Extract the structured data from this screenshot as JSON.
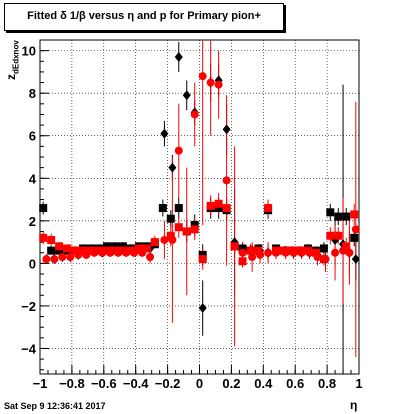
{
  "title": "Fitted δ 1/β versus η and p for Primary pion+",
  "timestamp": "Sat Sep  9 12:36:41 2017",
  "xlabel": "η",
  "ylabel_main": "z",
  "ylabel_sub": "dEdxnov",
  "chart_data": {
    "type": "scatter",
    "title": "Fitted δ 1/β versus η and p for Primary pion+",
    "xlabel": "η",
    "ylabel": "z_dEdxnov",
    "xlim": [
      -1.0,
      1.0
    ],
    "ylim": [
      -5.2,
      10.5
    ],
    "grid": true,
    "xticks": [
      -1,
      -0.8,
      -0.6,
      -0.4,
      -0.2,
      0,
      0.2,
      0.4,
      0.6,
      0.8,
      1
    ],
    "xtick_labels": [
      "−1",
      "−0.8",
      "−0.6",
      "−0.4",
      "−0.2",
      "0",
      "0.2",
      "0.4",
      "0.6",
      "0.8",
      "1"
    ],
    "yticks": [
      -4,
      -2,
      0,
      2,
      4,
      6,
      8,
      10
    ],
    "ytick_labels": [
      "−4",
      "−2",
      "0",
      "2",
      "4",
      "6",
      "8",
      "10"
    ],
    "series": [
      {
        "color": "#000000",
        "marker": "square",
        "points": [
          {
            "x": -0.98,
            "y": 2.6,
            "err": 0.3
          },
          {
            "x": -0.93,
            "y": 0.6,
            "err": 0.2
          },
          {
            "x": -0.88,
            "y": 0.6,
            "err": 0.2
          },
          {
            "x": -0.83,
            "y": 0.6,
            "err": 0.2
          },
          {
            "x": -0.78,
            "y": 0.6,
            "err": 0.2
          },
          {
            "x": -0.73,
            "y": 0.7,
            "err": 0.2
          },
          {
            "x": -0.68,
            "y": 0.7,
            "err": 0.2
          },
          {
            "x": -0.63,
            "y": 0.7,
            "err": 0.2
          },
          {
            "x": -0.58,
            "y": 0.8,
            "err": 0.2
          },
          {
            "x": -0.53,
            "y": 0.8,
            "err": 0.2
          },
          {
            "x": -0.48,
            "y": 0.8,
            "err": 0.2
          },
          {
            "x": -0.43,
            "y": 0.7,
            "err": 0.2
          },
          {
            "x": -0.38,
            "y": 0.8,
            "err": 0.2
          },
          {
            "x": -0.33,
            "y": 0.8,
            "err": 0.2
          },
          {
            "x": -0.28,
            "y": 0.9,
            "err": 0.2
          },
          {
            "x": -0.23,
            "y": 2.6,
            "err": 0.4
          },
          {
            "x": -0.18,
            "y": 2.1,
            "err": 0.4
          },
          {
            "x": -0.13,
            "y": 2.6,
            "err": 0.5
          },
          {
            "x": -0.08,
            "y": 1.5,
            "err": 0.5
          },
          {
            "x": -0.03,
            "y": 1.8,
            "err": 0.5
          },
          {
            "x": 0.02,
            "y": 0.4,
            "err": 0.5
          },
          {
            "x": 0.07,
            "y": 2.6,
            "err": 0.5
          },
          {
            "x": 0.12,
            "y": 2.6,
            "err": 0.5
          },
          {
            "x": 0.17,
            "y": 2.5,
            "err": 0.5
          },
          {
            "x": 0.22,
            "y": 0.8,
            "err": 0.4
          },
          {
            "x": 0.27,
            "y": 0.7,
            "err": 0.3
          },
          {
            "x": 0.32,
            "y": 0.6,
            "err": 0.3
          },
          {
            "x": 0.37,
            "y": 0.7,
            "err": 0.2
          },
          {
            "x": 0.43,
            "y": 2.5,
            "err": 0.4
          },
          {
            "x": 0.48,
            "y": 0.7,
            "err": 0.2
          },
          {
            "x": 0.53,
            "y": 0.6,
            "err": 0.2
          },
          {
            "x": 0.58,
            "y": 0.6,
            "err": 0.2
          },
          {
            "x": 0.63,
            "y": 0.6,
            "err": 0.2
          },
          {
            "x": 0.68,
            "y": 0.7,
            "err": 0.2
          },
          {
            "x": 0.73,
            "y": 0.6,
            "err": 0.2
          },
          {
            "x": 0.78,
            "y": 0.7,
            "err": 0.3
          },
          {
            "x": 0.82,
            "y": 2.4,
            "err": 0.4
          },
          {
            "x": 0.87,
            "y": 2.2,
            "err": 0.4
          },
          {
            "x": 0.92,
            "y": 2.2,
            "err": 0.4
          },
          {
            "x": 0.97,
            "y": 1.2,
            "err": 0.4
          }
        ]
      },
      {
        "color": "#000000",
        "marker": "diamond",
        "points": [
          {
            "x": -0.96,
            "y": 0.2,
            "err": 0.2
          },
          {
            "x": -0.91,
            "y": 0.2,
            "err": 0.2
          },
          {
            "x": -0.86,
            "y": 0.3,
            "err": 0.2
          },
          {
            "x": -0.81,
            "y": 0.3,
            "err": 0.2
          },
          {
            "x": -0.76,
            "y": 0.4,
            "err": 0.2
          },
          {
            "x": -0.71,
            "y": 0.5,
            "err": 0.2
          },
          {
            "x": -0.66,
            "y": 0.6,
            "err": 0.2
          },
          {
            "x": -0.61,
            "y": 0.5,
            "err": 0.2
          },
          {
            "x": -0.56,
            "y": 0.6,
            "err": 0.2
          },
          {
            "x": -0.51,
            "y": 0.6,
            "err": 0.2
          },
          {
            "x": -0.46,
            "y": 0.6,
            "err": 0.2
          },
          {
            "x": -0.41,
            "y": 0.6,
            "err": 0.2
          },
          {
            "x": -0.36,
            "y": 0.6,
            "err": 0.2
          },
          {
            "x": -0.31,
            "y": 0.7,
            "err": 0.2
          },
          {
            "x": -0.22,
            "y": 6.1,
            "err": 0.6
          },
          {
            "x": -0.17,
            "y": 4.5,
            "err": 0.6
          },
          {
            "x": -0.13,
            "y": 9.7,
            "err": 0.7
          },
          {
            "x": -0.08,
            "y": 7.9,
            "err": 0.7
          },
          {
            "x": -0.03,
            "y": 7.1,
            "err": 0.6
          },
          {
            "x": 0.02,
            "y": -2.1,
            "err": 1.3
          },
          {
            "x": 0.07,
            "y": 8.5,
            "err": 0.9
          },
          {
            "x": 0.12,
            "y": 8.6,
            "err": 0.8
          },
          {
            "x": 0.17,
            "y": 6.3,
            "err": 1.2
          },
          {
            "x": 0.22,
            "y": 1.0,
            "err": 2.5
          },
          {
            "x": 0.27,
            "y": 0.6,
            "err": 0.4
          },
          {
            "x": 0.33,
            "y": 0.6,
            "err": 0.3
          },
          {
            "x": 0.38,
            "y": 0.6,
            "err": 0.3
          },
          {
            "x": 0.43,
            "y": 0.5,
            "err": 0.4
          },
          {
            "x": 0.48,
            "y": 0.6,
            "err": 0.2
          },
          {
            "x": 0.54,
            "y": 0.6,
            "err": 0.2
          },
          {
            "x": 0.59,
            "y": 0.5,
            "err": 0.2
          },
          {
            "x": 0.64,
            "y": 0.5,
            "err": 0.2
          },
          {
            "x": 0.69,
            "y": 0.5,
            "err": 0.2
          },
          {
            "x": 0.74,
            "y": 0.4,
            "err": 0.2
          },
          {
            "x": 0.79,
            "y": 0.2,
            "err": 0.4
          },
          {
            "x": 0.85,
            "y": 1.1,
            "err": 1.2
          },
          {
            "x": 0.9,
            "y": 0.9,
            "err": 7.5
          },
          {
            "x": 0.94,
            "y": 0.5,
            "err": 1.0
          },
          {
            "x": 0.98,
            "y": 0.2,
            "err": 1.0
          }
        ]
      },
      {
        "color": "#ff0000",
        "marker": "square",
        "points": [
          {
            "x": -0.98,
            "y": 1.2,
            "err": 0.3
          },
          {
            "x": -0.93,
            "y": 1.1,
            "err": 0.3
          },
          {
            "x": -0.88,
            "y": 0.8,
            "err": 0.2
          },
          {
            "x": -0.83,
            "y": 0.7,
            "err": 0.2
          },
          {
            "x": -0.78,
            "y": 0.6,
            "err": 0.2
          },
          {
            "x": -0.73,
            "y": 0.6,
            "err": 0.2
          },
          {
            "x": -0.68,
            "y": 0.6,
            "err": 0.2
          },
          {
            "x": -0.63,
            "y": 0.6,
            "err": 0.2
          },
          {
            "x": -0.58,
            "y": 0.6,
            "err": 0.2
          },
          {
            "x": -0.53,
            "y": 0.6,
            "err": 0.2
          },
          {
            "x": -0.48,
            "y": 0.6,
            "err": 0.2
          },
          {
            "x": -0.43,
            "y": 0.6,
            "err": 0.2
          },
          {
            "x": -0.38,
            "y": 0.7,
            "err": 0.2
          },
          {
            "x": -0.33,
            "y": 0.7,
            "err": 0.2
          },
          {
            "x": -0.28,
            "y": 1.0,
            "err": 0.3
          },
          {
            "x": -0.18,
            "y": 1.3,
            "err": 0.5
          },
          {
            "x": -0.13,
            "y": 1.7,
            "err": 0.5
          },
          {
            "x": -0.08,
            "y": 1.5,
            "err": 0.5
          },
          {
            "x": -0.03,
            "y": 1.6,
            "err": 0.5
          },
          {
            "x": 0.02,
            "y": 0.2,
            "err": 0.5
          },
          {
            "x": 0.07,
            "y": 2.7,
            "err": 0.5
          },
          {
            "x": 0.12,
            "y": 2.8,
            "err": 0.5
          },
          {
            "x": 0.17,
            "y": 2.6,
            "err": 0.5
          },
          {
            "x": 0.22,
            "y": 0.8,
            "err": 0.4
          },
          {
            "x": 0.27,
            "y": 0.1,
            "err": 0.3
          },
          {
            "x": 0.32,
            "y": 0.6,
            "err": 0.3
          },
          {
            "x": 0.37,
            "y": 0.6,
            "err": 0.2
          },
          {
            "x": 0.43,
            "y": 2.6,
            "err": 0.4
          },
          {
            "x": 0.48,
            "y": 0.6,
            "err": 0.2
          },
          {
            "x": 0.53,
            "y": 0.6,
            "err": 0.2
          },
          {
            "x": 0.58,
            "y": 0.6,
            "err": 0.2
          },
          {
            "x": 0.63,
            "y": 0.6,
            "err": 0.2
          },
          {
            "x": 0.68,
            "y": 0.6,
            "err": 0.2
          },
          {
            "x": 0.73,
            "y": 0.5,
            "err": 0.2
          },
          {
            "x": 0.78,
            "y": 0.2,
            "err": 0.3
          },
          {
            "x": 0.82,
            "y": 1.3,
            "err": 0.4
          },
          {
            "x": 0.87,
            "y": 1.3,
            "err": 0.4
          },
          {
            "x": 0.92,
            "y": 0.8,
            "err": 0.4
          },
          {
            "x": 0.97,
            "y": 2.3,
            "err": 0.5
          }
        ]
      },
      {
        "color": "#ff0000",
        "marker": "circle",
        "points": [
          {
            "x": -0.96,
            "y": 0.2,
            "err": 0.2
          },
          {
            "x": -0.91,
            "y": 0.2,
            "err": 0.2
          },
          {
            "x": -0.86,
            "y": 0.3,
            "err": 0.2
          },
          {
            "x": -0.81,
            "y": 0.3,
            "err": 0.2
          },
          {
            "x": -0.76,
            "y": 0.4,
            "err": 0.2
          },
          {
            "x": -0.71,
            "y": 0.4,
            "err": 0.2
          },
          {
            "x": -0.66,
            "y": 0.5,
            "err": 0.2
          },
          {
            "x": -0.61,
            "y": 0.5,
            "err": 0.2
          },
          {
            "x": -0.56,
            "y": 0.5,
            "err": 0.2
          },
          {
            "x": -0.51,
            "y": 0.5,
            "err": 0.2
          },
          {
            "x": -0.46,
            "y": 0.5,
            "err": 0.2
          },
          {
            "x": -0.41,
            "y": 0.5,
            "err": 0.2
          },
          {
            "x": -0.36,
            "y": 0.5,
            "err": 0.2
          },
          {
            "x": -0.31,
            "y": 0.3,
            "err": 0.3
          },
          {
            "x": -0.22,
            "y": 1.1,
            "err": 0.9
          },
          {
            "x": -0.17,
            "y": 1.1,
            "err": 3.9
          },
          {
            "x": -0.13,
            "y": 5.3,
            "err": 2.2
          },
          {
            "x": -0.08,
            "y": 1.5,
            "err": 3.0
          },
          {
            "x": -0.03,
            "y": 7.0,
            "err": 1.5
          },
          {
            "x": 0.02,
            "y": 8.8,
            "err": 7.0
          },
          {
            "x": 0.07,
            "y": 8.5,
            "err": 2.5
          },
          {
            "x": 0.12,
            "y": 8.4,
            "err": 1.6
          },
          {
            "x": 0.17,
            "y": 3.9,
            "err": 4.0
          },
          {
            "x": 0.22,
            "y": 0.8,
            "err": 4.7
          },
          {
            "x": 0.27,
            "y": 0.5,
            "err": 0.5
          },
          {
            "x": 0.33,
            "y": 0.3,
            "err": 0.7
          },
          {
            "x": 0.38,
            "y": 0.4,
            "err": 0.4
          },
          {
            "x": 0.43,
            "y": 0.5,
            "err": 0.5
          },
          {
            "x": 0.48,
            "y": 0.5,
            "err": 0.3
          },
          {
            "x": 0.54,
            "y": 0.5,
            "err": 0.3
          },
          {
            "x": 0.59,
            "y": 0.5,
            "err": 0.3
          },
          {
            "x": 0.64,
            "y": 0.5,
            "err": 0.3
          },
          {
            "x": 0.69,
            "y": 0.5,
            "err": 0.3
          },
          {
            "x": 0.74,
            "y": 0.3,
            "err": 0.4
          },
          {
            "x": 0.79,
            "y": 0.2,
            "err": 0.6
          },
          {
            "x": 0.85,
            "y": 0.5,
            "err": 1.3
          },
          {
            "x": 0.9,
            "y": 0.6,
            "err": 2.5
          },
          {
            "x": 0.94,
            "y": 0.5,
            "err": 1.5
          },
          {
            "x": 0.98,
            "y": 1.6,
            "err": 6.0
          }
        ]
      }
    ]
  }
}
